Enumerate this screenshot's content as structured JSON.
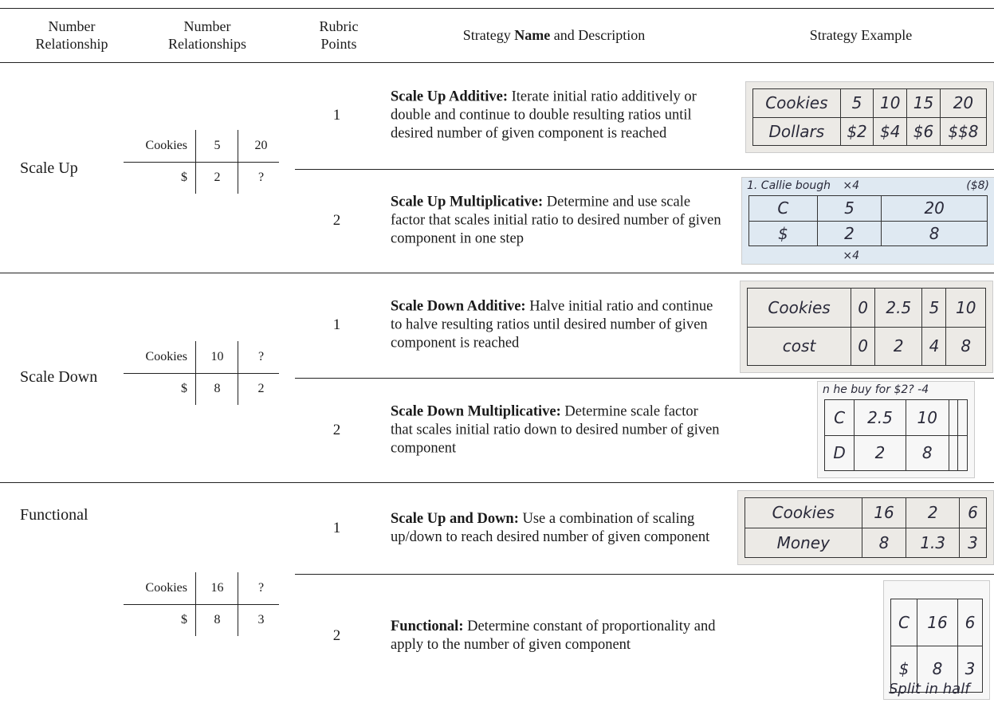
{
  "header": {
    "col1": "Number Relationship",
    "col2": "Number Relationships",
    "col3": "Rubric Points",
    "col4": {
      "pre": "Strategy ",
      "bold": "Name",
      "post": " and Description"
    },
    "col5": "Strategy Example"
  },
  "groups": [
    {
      "name": "Scale Up",
      "ratio": [
        [
          "Cookies",
          5,
          20
        ],
        [
          "$",
          2,
          "?"
        ]
      ],
      "strategies": [
        {
          "points": 1,
          "name": "Scale Up Additive:",
          "description": " Iterate initial ratio additively or double and continue to double resulting ratios until desired number of given component is reached",
          "example": {
            "rows": [
              [
                "Cookies",
                5,
                10,
                15,
                20
              ],
              [
                "Dollars",
                "$2",
                "$4",
                "$6",
                "$$8"
              ]
            ],
            "notes": []
          }
        },
        {
          "points": 2,
          "name": "Scale Up Multiplicative:",
          "description": " Determine and use scale factor that scales initial ratio to desired number of given component in one step",
          "example": {
            "rows": [
              [
                "C",
                5,
                20
              ],
              [
                "$",
                2,
                8
              ]
            ],
            "notes": [
              "1. Callie bough",
              "×4",
              "($8)",
              "×4"
            ]
          }
        }
      ]
    },
    {
      "name": "Scale Down",
      "ratio": [
        [
          "Cookies",
          10,
          "?"
        ],
        [
          "$",
          8,
          2
        ]
      ],
      "strategies": [
        {
          "points": 1,
          "name": "Scale Down Additive:",
          "description": " Halve initial ratio and continue to halve resulting ratios until desired number of given component is reached",
          "example": {
            "rows": [
              [
                "Cookies",
                0,
                2.5,
                5,
                10
              ],
              [
                "cost",
                0,
                2,
                4,
                8
              ]
            ],
            "notes": []
          }
        },
        {
          "points": 2,
          "name": "Scale Down Multiplicative:",
          "description": " Determine scale factor that scales initial ratio down to desired number of given component",
          "example": {
            "rows": [
              [
                "C",
                2.5,
                10,
                "",
                ""
              ],
              [
                "D",
                2,
                8,
                "",
                ""
              ]
            ],
            "notes": [
              "n he buy for $2? -4"
            ]
          }
        }
      ]
    },
    {
      "name": "Functional",
      "ratio": [
        [
          "Cookies",
          16,
          "?"
        ],
        [
          "$",
          8,
          3
        ]
      ],
      "strategies": [
        {
          "points": 1,
          "name": "Scale Up and Down:",
          "description": " Use a combination of scaling up/down to reach desired number of given component",
          "example": {
            "rows": [
              [
                "Cookies",
                16,
                2,
                6
              ],
              [
                "Money",
                8,
                1.3,
                3
              ]
            ],
            "notes": []
          }
        },
        {
          "points": 2,
          "name": "Functional:",
          "description": " Determine constant of proportionality and apply to the number of given component",
          "example": {
            "rows": [
              [
                "C",
                16,
                6
              ],
              [
                "$",
                8,
                3
              ]
            ],
            "notes": [
              "Split in half"
            ]
          }
        }
      ]
    }
  ]
}
